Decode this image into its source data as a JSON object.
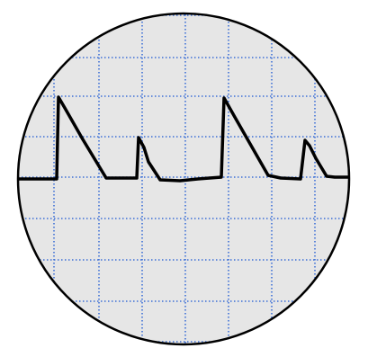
{
  "diagram": {
    "kind": "oscilloscope-trace",
    "colors": {
      "background": "#ffffff",
      "screen_fill": "#e6e6e6",
      "screen_border": "#000000",
      "grid": "#3b6fd6",
      "trace": "#000000"
    },
    "grid": {
      "visible": true,
      "style": "dotted"
    },
    "signal": {
      "shape": "sawtooth-spikes",
      "pulse_count": 4,
      "pulse_heights_relative": [
        1.0,
        0.5,
        1.0,
        0.5
      ]
    }
  }
}
